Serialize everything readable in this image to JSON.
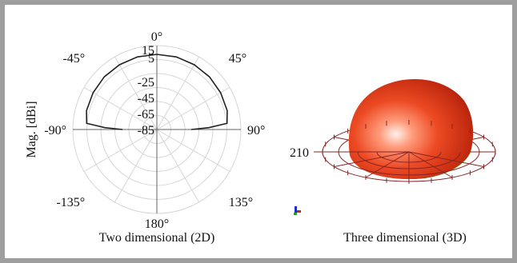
{
  "chart_data": [
    {
      "type": "polar",
      "title": "",
      "caption": "Two dimensional (2D)",
      "radial_axis_label": "Mag. [dBi]",
      "radial_ticks": [
        "15",
        "5",
        "-25",
        "-45",
        "-65",
        "-85"
      ],
      "radial_tick_values": [
        15,
        5,
        -25,
        -45,
        -65,
        -85
      ],
      "angle_ticks": [
        "0°",
        "45°",
        "90°",
        "135°",
        "180°",
        "-135°",
        "-90°",
        "-45°"
      ],
      "angle_tick_values": [
        0,
        45,
        90,
        135,
        180,
        -135,
        -90,
        -45
      ],
      "grid": true,
      "series": [
        {
          "angles_deg": [
            -90,
            -88,
            -85,
            -75,
            -60,
            -45,
            -30,
            -15,
            0,
            15,
            30,
            45,
            60,
            75,
            85,
            88,
            90
          ],
          "values_dBi": [
            -42,
            -20,
            3,
            6,
            7,
            8,
            8.5,
            9,
            9,
            9,
            8.5,
            8,
            7,
            6,
            3,
            -20,
            -42
          ]
        }
      ]
    },
    {
      "type": "3d-surface",
      "title": "",
      "caption": "Three dimensional (3D)",
      "tick_label": "210",
      "shape": "hemisphere",
      "colors": {
        "surface_top": "#e03a1a",
        "surface_highlight": "#ffe9e0",
        "surface_bottom": "#2e7d1f",
        "grid": "#8a2424"
      }
    }
  ]
}
